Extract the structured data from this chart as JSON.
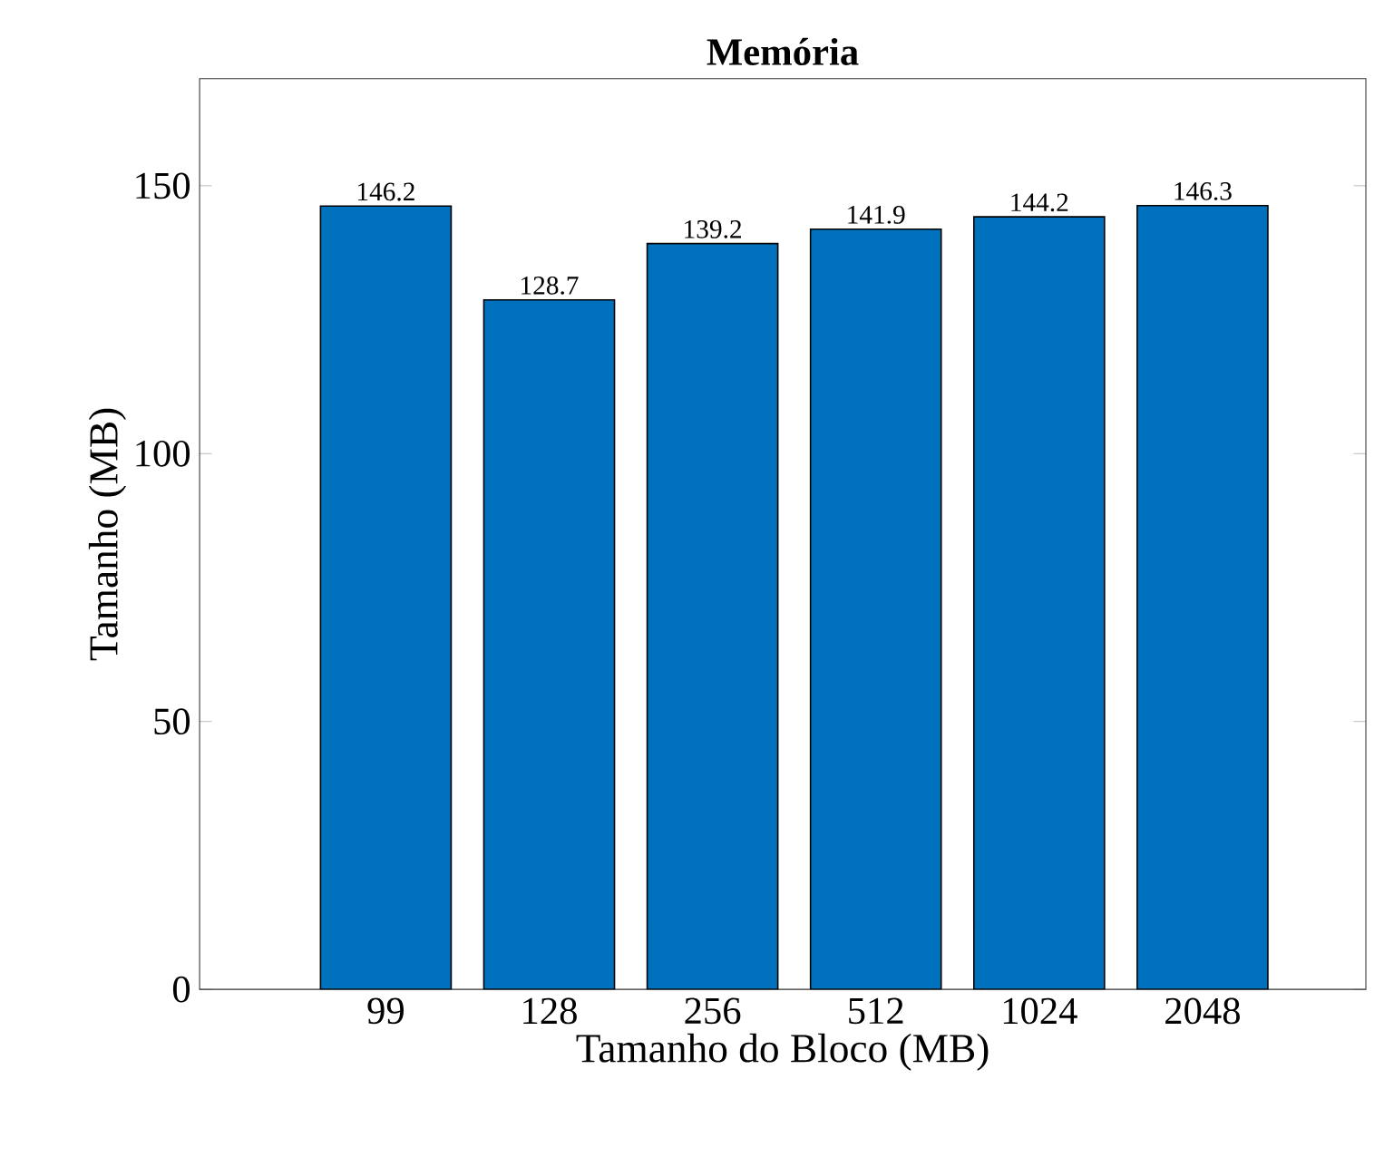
{
  "chart_data": {
    "type": "bar",
    "title": "Memória",
    "xlabel": "Tamanho do Bloco (MB)",
    "ylabel": "Tamanho (MB)",
    "categories": [
      "99",
      "128",
      "256",
      "512",
      "1024",
      "2048"
    ],
    "values": [
      146.2,
      128.7,
      139.2,
      141.9,
      144.2,
      146.3
    ],
    "color": "#0072bd",
    "ylim": [
      0,
      170
    ],
    "yticks": [
      0,
      50,
      100,
      150
    ],
    "data_labels": true
  }
}
